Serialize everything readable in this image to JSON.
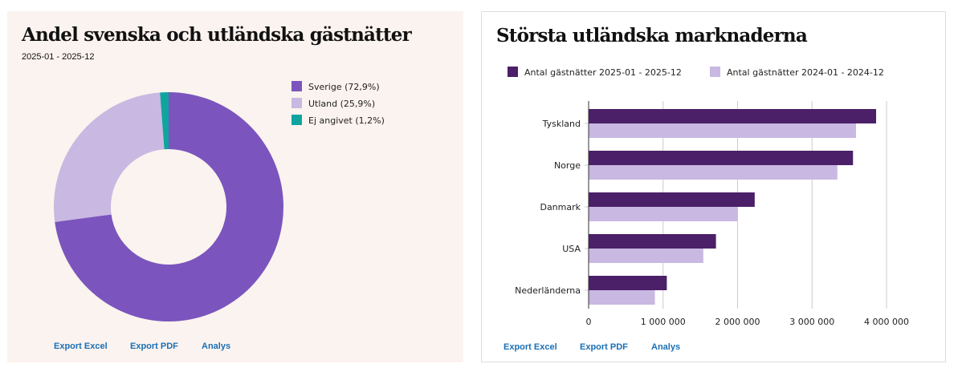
{
  "chart_data": [
    {
      "type": "pie",
      "title": "Andel svenska och utländska gästnätter",
      "subtitle": "2025-01 - 2025-12",
      "slices": [
        {
          "label": "Sverige (72,9%)",
          "value": 72.9,
          "color": "#7b55bd"
        },
        {
          "label": "Utland (25,9%)",
          "value": 25.9,
          "color": "#c9b8e2"
        },
        {
          "label": "Ej angivet (1,2%)",
          "value": 1.2,
          "color": "#0fa59e"
        }
      ],
      "legend": "top-right",
      "donut": true
    },
    {
      "type": "bar",
      "orientation": "horizontal",
      "title": "Största utländska marknaderna",
      "categories": [
        "Tyskland",
        "Norge",
        "Danmark",
        "USA",
        "Nederländerna"
      ],
      "series": [
        {
          "name": "Antal gästnätter 2025-01 - 2025-12",
          "color": "#4b2068",
          "values": [
            3860000,
            3550000,
            2230000,
            1710000,
            1050000
          ]
        },
        {
          "name": "Antal gästnätter 2024-01 - 2024-12",
          "color": "#c9b8e2",
          "values": [
            3590000,
            3340000,
            2000000,
            1540000,
            890000
          ]
        }
      ],
      "xlim": [
        0,
        4000000
      ],
      "xticks": [
        0,
        1000000,
        2000000,
        3000000,
        4000000
      ],
      "xtick_labels": [
        "0",
        "1 000 000",
        "2 000 000",
        "3 000 000",
        "4 000 000"
      ],
      "grid": true,
      "legend": "top"
    }
  ],
  "links": {
    "excel": "Export Excel",
    "pdf": "Export PDF",
    "analys": "Analys"
  }
}
